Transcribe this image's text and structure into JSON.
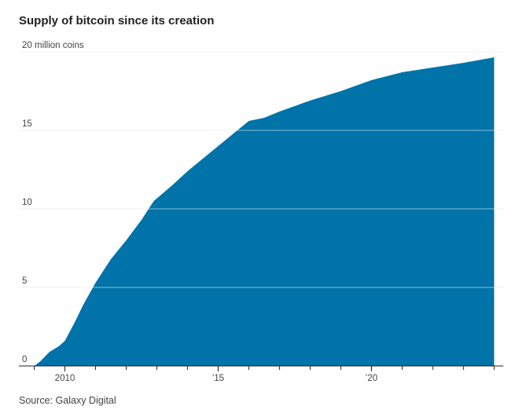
{
  "chart_data": {
    "type": "area",
    "title": "Supply of bitcoin since its creation",
    "source": "Source: Galaxy Digital",
    "y_unit_label": "20 million coins",
    "xlabel": "",
    "ylabel": "",
    "xlim": [
      2008.5,
      2024.3
    ],
    "ylim": [
      0,
      20
    ],
    "x_ticks": [
      {
        "value": 2010,
        "label": "2010"
      },
      {
        "value": 2015,
        "label": "’15"
      },
      {
        "value": 2020,
        "label": "’20"
      }
    ],
    "y_ticks": [
      {
        "value": 0,
        "label": "0"
      },
      {
        "value": 5,
        "label": "5"
      },
      {
        "value": 10,
        "label": "10"
      },
      {
        "value": 15,
        "label": "15"
      },
      {
        "value": 20,
        "label": ""
      }
    ],
    "grid": true,
    "colors": {
      "area": "#0073a8",
      "grid": "#dddddd",
      "axis": "#222222"
    },
    "series": [
      {
        "x": [
          2009.0,
          2009.2,
          2009.5,
          2009.8,
          2010.0,
          2010.3,
          2010.6,
          2011.0,
          2011.5,
          2012.0,
          2012.5,
          2012.9,
          2013.5,
          2014.0,
          2014.5,
          2015.0,
          2015.5,
          2016.0,
          2016.5,
          2017.0,
          2018.0,
          2019.0,
          2020.0,
          2020.4,
          2021.0,
          2022.0,
          2023.0,
          2024.0
        ],
        "values": [
          0.0,
          0.3,
          0.9,
          1.25,
          1.6,
          2.7,
          3.9,
          5.3,
          6.8,
          8.0,
          9.3,
          10.5,
          11.5,
          12.4,
          13.2,
          14.0,
          14.8,
          15.6,
          15.8,
          16.2,
          16.9,
          17.5,
          18.2,
          18.4,
          18.7,
          19.0,
          19.3,
          19.65
        ]
      }
    ]
  }
}
